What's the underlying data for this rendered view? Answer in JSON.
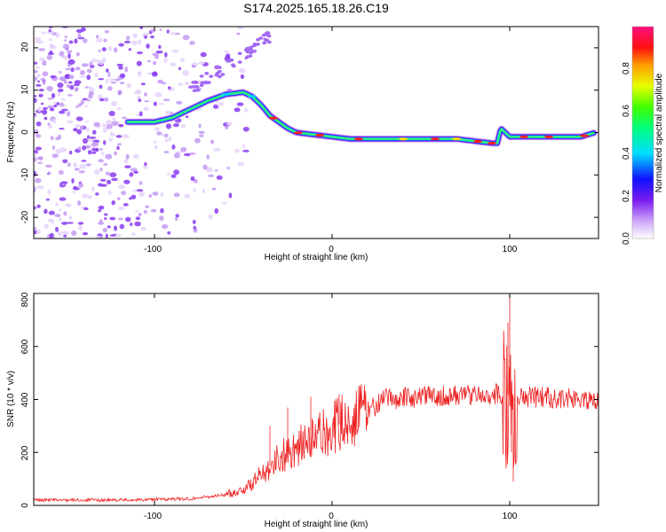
{
  "title": "S174.2025.165.18.26.C19",
  "chart_data": [
    {
      "type": "heatmap",
      "xlabel": "Height of straight line (km)",
      "ylabel": "Frequency (Hz)",
      "xlim": [
        -168,
        150
      ],
      "ylim": [
        -25,
        25
      ],
      "x_ticks": [
        "-100",
        "0",
        "100"
      ],
      "y_ticks": [
        "-20",
        "-10",
        "0",
        "10",
        "20"
      ],
      "colorbar": {
        "label": "Normalized spectral amplitude",
        "range": [
          0,
          1
        ],
        "ticks": [
          "0.0",
          "0.2",
          "0.4",
          "0.6",
          "0.8"
        ]
      },
      "ridge": {
        "x": [
          -115,
          -100,
          -90,
          -80,
          -70,
          -60,
          -50,
          -45,
          -40,
          -35,
          -30,
          -25,
          -20,
          -10,
          0,
          10,
          20,
          40,
          60,
          70,
          80,
          90,
          93,
          95,
          100,
          120,
          140,
          148
        ],
        "y": [
          2.5,
          2.5,
          3.5,
          5.5,
          7.5,
          9.0,
          9.5,
          8.5,
          6.5,
          4.0,
          2.5,
          1.0,
          0.0,
          -0.5,
          -1.0,
          -1.5,
          -1.5,
          -1.5,
          -1.5,
          -1.5,
          -2.0,
          -2.5,
          -2.5,
          1.0,
          -1.0,
          -1.0,
          -1.0,
          0.0
        ]
      }
    },
    {
      "type": "line",
      "xlabel": "Height of straight line (km)",
      "ylabel": "SNR (10 * v/v)",
      "xlim": [
        -168,
        150
      ],
      "ylim": [
        0,
        800
      ],
      "x_ticks": [
        "-100",
        "0",
        "100"
      ],
      "y_ticks": [
        "0",
        "200",
        "400",
        "600",
        "800"
      ],
      "color": "#ee2222",
      "envelope": {
        "x": [
          -168,
          -120,
          -80,
          -60,
          -50,
          -45,
          -40,
          -30,
          -20,
          -10,
          0,
          10,
          20,
          30,
          50,
          80,
          98,
          102,
          110,
          130,
          150
        ],
        "y": [
          20,
          20,
          25,
          40,
          60,
          80,
          120,
          180,
          220,
          250,
          290,
          330,
          360,
          400,
          410,
          420,
          420,
          410,
          410,
          405,
          400
        ]
      },
      "spikes": {
        "x": [
          -35,
          -25,
          -12,
          4,
          99,
          100,
          101,
          102
        ],
        "y": [
          300,
          370,
          410,
          420,
          690,
          800,
          200,
          90
        ]
      }
    }
  ]
}
